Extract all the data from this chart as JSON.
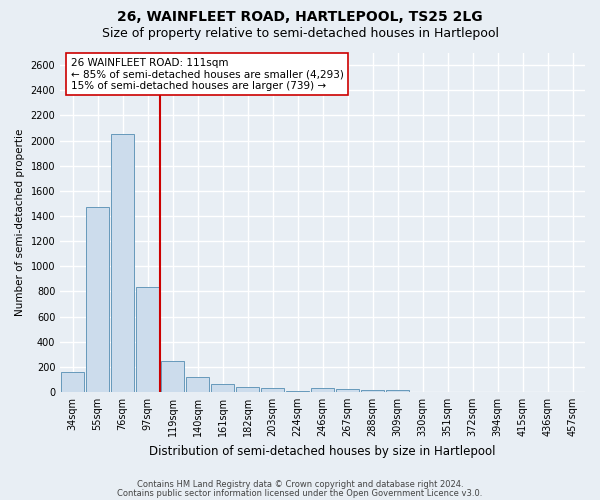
{
  "title": "26, WAINFLEET ROAD, HARTLEPOOL, TS25 2LG",
  "subtitle": "Size of property relative to semi-detached houses in Hartlepool",
  "xlabel": "Distribution of semi-detached houses by size in Hartlepool",
  "ylabel": "Number of semi-detached propertie",
  "footnote1": "Contains HM Land Registry data © Crown copyright and database right 2024.",
  "footnote2": "Contains public sector information licensed under the Open Government Licence v3.0.",
  "bar_labels": [
    "34sqm",
    "55sqm",
    "76sqm",
    "97sqm",
    "119sqm",
    "140sqm",
    "161sqm",
    "182sqm",
    "203sqm",
    "224sqm",
    "246sqm",
    "267sqm",
    "288sqm",
    "309sqm",
    "330sqm",
    "351sqm",
    "372sqm",
    "394sqm",
    "415sqm",
    "436sqm",
    "457sqm"
  ],
  "bar_values": [
    155,
    1470,
    2050,
    835,
    250,
    115,
    65,
    40,
    35,
    10,
    30,
    20,
    15,
    15,
    0,
    0,
    0,
    0,
    0,
    0,
    0
  ],
  "bar_color": "#ccdcec",
  "bar_edge_color": "#6699bb",
  "property_line_color": "#cc0000",
  "annotation_text": "26 WAINFLEET ROAD: 111sqm\n← 85% of semi-detached houses are smaller (4,293)\n15% of semi-detached houses are larger (739) →",
  "annotation_box_color": "#ffffff",
  "annotation_box_edge": "#cc0000",
  "ylim": [
    0,
    2700
  ],
  "background_color": "#e8eef4",
  "grid_color": "#ffffff",
  "title_fontsize": 10,
  "subtitle_fontsize": 9,
  "bar_fontsize": 7,
  "ylabel_fontsize": 7.5,
  "xlabel_fontsize": 8.5,
  "annot_fontsize": 7.5,
  "footnote_fontsize": 6
}
